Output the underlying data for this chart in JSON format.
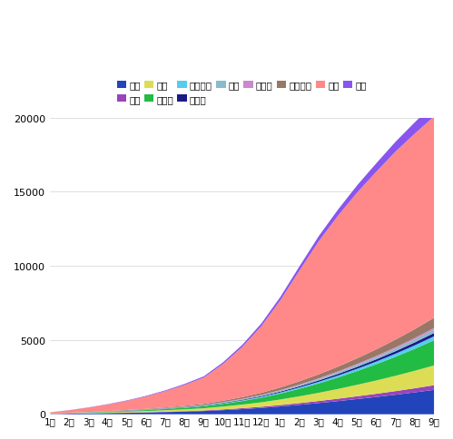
{
  "x_labels": [
    "1月",
    "2月",
    "3月",
    "4月",
    "5月",
    "6月",
    "7月",
    "8月",
    "9月",
    "10月",
    "11月",
    "12月",
    "1月",
    "2月",
    "3月",
    "4月",
    "5月",
    "6月",
    "7月",
    "8月",
    "9月"
  ],
  "series_order": [
    "北米",
    "南米",
    "欧州",
    "アジア",
    "アフリカ",
    "大洋州",
    "中東",
    "ロシア",
    "海外不明",
    "日本",
    "不明"
  ],
  "series": {
    "北米": [
      20,
      40,
      60,
      80,
      100,
      120,
      150,
      180,
      220,
      280,
      350,
      430,
      530,
      640,
      760,
      890,
      1030,
      1170,
      1320,
      1480,
      1650
    ],
    "南米": [
      3,
      6,
      9,
      12,
      16,
      20,
      25,
      31,
      38,
      50,
      63,
      78,
      96,
      116,
      138,
      162,
      188,
      216,
      246,
      278,
      312
    ],
    "欧州": [
      10,
      20,
      32,
      45,
      60,
      78,
      98,
      120,
      148,
      190,
      240,
      300,
      375,
      460,
      555,
      660,
      775,
      900,
      1035,
      1180,
      1335
    ],
    "アジア": [
      8,
      16,
      26,
      38,
      52,
      68,
      88,
      112,
      140,
      185,
      240,
      310,
      400,
      510,
      635,
      775,
      930,
      1100,
      1285,
      1485,
      1700
    ],
    "アフリカ": [
      2,
      4,
      6,
      8,
      11,
      14,
      18,
      22,
      28,
      37,
      47,
      59,
      74,
      91,
      110,
      131,
      154,
      179,
      206,
      235,
      266
    ],
    "大洋州": [
      2,
      4,
      6,
      8,
      10,
      13,
      16,
      20,
      25,
      32,
      40,
      50,
      62,
      76,
      92,
      109,
      128,
      149,
      172,
      197,
      224
    ],
    "中東": [
      2,
      4,
      6,
      8,
      10,
      13,
      16,
      20,
      25,
      32,
      40,
      50,
      62,
      76,
      92,
      109,
      128,
      149,
      172,
      197,
      224
    ],
    "ロシア": [
      1,
      2,
      3,
      4,
      5,
      6,
      8,
      10,
      12,
      16,
      20,
      25,
      31,
      38,
      46,
      55,
      65,
      76,
      88,
      101,
      115
    ],
    "海外不明": [
      4,
      8,
      13,
      19,
      26,
      34,
      44,
      56,
      70,
      92,
      117,
      147,
      184,
      226,
      274,
      327,
      386,
      451,
      523,
      601,
      686
    ],
    "日本": [
      80,
      170,
      290,
      440,
      620,
      840,
      1100,
      1410,
      1770,
      2480,
      3380,
      4500,
      5900,
      7500,
      9000,
      10200,
      11200,
      12000,
      12700,
      13200,
      13600
    ],
    "不明": [
      5,
      10,
      16,
      23,
      31,
      41,
      53,
      68,
      85,
      113,
      145,
      183,
      230,
      284,
      344,
      412,
      488,
      572,
      664,
      764,
      873
    ]
  },
  "colors": {
    "北米": "#2244bb",
    "南米": "#9944bb",
    "欧州": "#dddd55",
    "アジア": "#22bb44",
    "アフリカ": "#55ccee",
    "大洋州": "#1a1a88",
    "中東": "#88bbcc",
    "ロシア": "#cc88cc",
    "海外不明": "#997766",
    "日本": "#ff8888",
    "不明": "#8855ee"
  },
  "ylim": [
    0,
    20000
  ],
  "yticks": [
    0,
    5000,
    10000,
    15000,
    20000
  ],
  "legend_row1": [
    "北米",
    "南米",
    "欧州",
    "アジア",
    "アフリカ",
    "大洋州",
    "中東",
    "ロシア"
  ],
  "legend_row2": [
    "海外不明",
    "日本",
    "不明"
  ]
}
